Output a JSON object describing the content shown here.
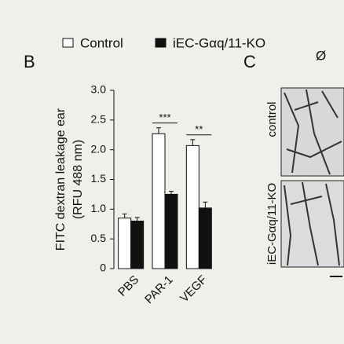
{
  "chart_data": {
    "type": "bar",
    "panel": "B",
    "ylabel": [
      "FITC dextran leakage ear",
      "(RFU 488 nm)"
    ],
    "categories": [
      "PBS",
      "PAR-1",
      "VEGF"
    ],
    "series": [
      {
        "name": "Control",
        "color": "#ffffff",
        "values": [
          0.85,
          2.27,
          2.07
        ],
        "errors": [
          0.07,
          0.1,
          0.1
        ]
      },
      {
        "name": "iEC-Gαq/11-KO",
        "color": "#111111",
        "values": [
          0.8,
          1.25,
          1.02
        ],
        "errors": [
          0.06,
          0.05,
          0.1
        ]
      }
    ],
    "ylim": [
      0,
      3
    ],
    "yticks": [
      0,
      0.5,
      {
        "value": 1,
        "label": "1.0"
      },
      1.5,
      {
        "value": 2,
        "label": "2.0"
      },
      2.5,
      {
        "value": 3,
        "label": "3.0"
      }
    ],
    "annotations": [
      {
        "category": 1,
        "text": "***"
      },
      {
        "category": 2,
        "text": "**"
      }
    ]
  },
  "panel_c": {
    "label": "C",
    "column": "Ø",
    "rows": [
      "control",
      "iEC-Gαq/11-KO"
    ]
  }
}
